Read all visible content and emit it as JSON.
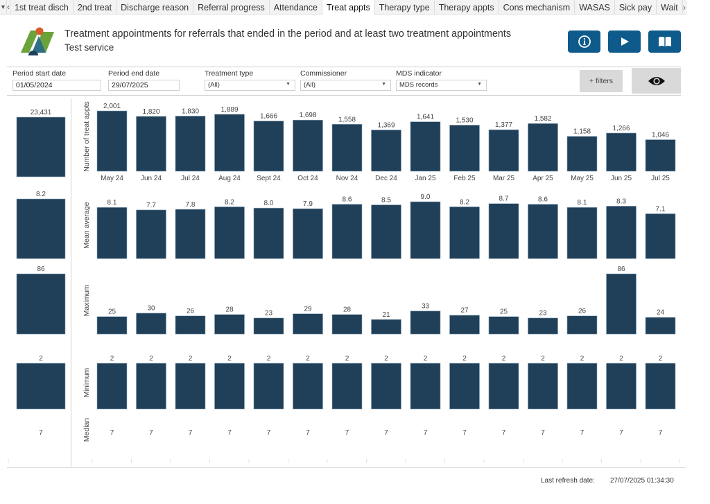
{
  "tabs": {
    "items": [
      {
        "label": "1st treat disch",
        "active": false
      },
      {
        "label": "2nd treat",
        "active": false
      },
      {
        "label": "Discharge reason",
        "active": false
      },
      {
        "label": "Referral progress",
        "active": false
      },
      {
        "label": "Attendance",
        "active": false
      },
      {
        "label": "Treat appts",
        "active": true
      },
      {
        "label": "Therapy type",
        "active": false
      },
      {
        "label": "Therapy appts",
        "active": false
      },
      {
        "label": "Cons mechanism",
        "active": false
      },
      {
        "label": "WASAS",
        "active": false
      },
      {
        "label": "Sick pay",
        "active": false
      },
      {
        "label": "Wait",
        "active": false
      }
    ],
    "menu_icon": "caret-down-icon",
    "prev_icon": "chevron-left-icon",
    "next_icon": "chevron-right-icon"
  },
  "header": {
    "title": "Treatment appointments for referrals that ended in the period and at least two treatment appointments",
    "subtitle": "Test service",
    "buttons": [
      {
        "name": "info-button",
        "icon": "info-icon"
      },
      {
        "name": "play-button",
        "icon": "play-icon"
      },
      {
        "name": "guide-button",
        "icon": "book-icon"
      }
    ],
    "button_color": "#0e5a8a"
  },
  "filters": {
    "period_start": {
      "label": "Period start date",
      "value": "01/05/2024"
    },
    "period_end": {
      "label": "Period end date",
      "value": "29/07/2025"
    },
    "treatment_type": {
      "label": "Treatment type",
      "value": "(All)"
    },
    "commissioner": {
      "label": "Commissioner",
      "value": "(All)"
    },
    "mds_indicator": {
      "label": "MDS indicator",
      "value": "MDS records"
    },
    "more_filters_label": "+ filters",
    "visibility_icon": "eye-icon"
  },
  "footer": {
    "refresh_label": "Last refresh date:",
    "refresh_value": "27/07/2025 01:34:30"
  },
  "colors": {
    "bar": "#203f58",
    "bar_edge": "#8aa4b8",
    "text": "#333333",
    "divider": "#cfcfcf"
  },
  "chart_data": {
    "type": "bar",
    "categories": [
      "May 24",
      "Jun 24",
      "Jul 24",
      "Aug 24",
      "Sept 24",
      "Oct 24",
      "Nov 24",
      "Dec 24",
      "Jan 25",
      "Feb 25",
      "Mar 25",
      "Apr 25",
      "May 25",
      "Jun 25",
      "Jul 25"
    ],
    "series": [
      {
        "name": "Number of treat appts",
        "total": 23431,
        "total_label": "23,431",
        "values": [
          2001,
          1820,
          1830,
          1889,
          1666,
          1698,
          1558,
          1369,
          1641,
          1530,
          1377,
          1582,
          1158,
          1266,
          1046
        ],
        "labels": [
          "2,001",
          "1,820",
          "1,830",
          "1,889",
          "1,666",
          "1,698",
          "1,558",
          "1,369",
          "1,641",
          "1,530",
          "1,377",
          "1,582",
          "1,158",
          "1,266",
          "1,046"
        ],
        "bars": true
      },
      {
        "name": "Mean average",
        "total": 8.2,
        "total_label": "8.2",
        "values": [
          8.1,
          7.7,
          7.8,
          8.2,
          8.0,
          7.9,
          8.6,
          8.5,
          9.0,
          8.2,
          8.7,
          8.6,
          8.1,
          8.3,
          7.1
        ],
        "labels": [
          "8.1",
          "7.7",
          "7.8",
          "8.2",
          "8.0",
          "7.9",
          "8.6",
          "8.5",
          "9.0",
          "8.2",
          "8.7",
          "8.6",
          "8.1",
          "8.3",
          "7.1"
        ],
        "bars": true
      },
      {
        "name": "Maximum",
        "total": 86,
        "total_label": "86",
        "values": [
          25,
          30,
          26,
          28,
          23,
          29,
          28,
          21,
          33,
          27,
          25,
          23,
          26,
          86,
          24
        ],
        "labels": [
          "25",
          "30",
          "26",
          "28",
          "23",
          "29",
          "28",
          "21",
          "33",
          "27",
          "25",
          "23",
          "26",
          "86",
          "24"
        ],
        "bars": true
      },
      {
        "name": "Minimum",
        "total": 2,
        "total_label": "2",
        "values": [
          2,
          2,
          2,
          2,
          2,
          2,
          2,
          2,
          2,
          2,
          2,
          2,
          2,
          2,
          2
        ],
        "labels": [
          "2",
          "2",
          "2",
          "2",
          "2",
          "2",
          "2",
          "2",
          "2",
          "2",
          "2",
          "2",
          "2",
          "2",
          "2"
        ],
        "bars": true
      },
      {
        "name": "Median",
        "total": 7,
        "total_label": "7",
        "values": [
          7,
          7,
          7,
          7,
          7,
          7,
          7,
          7,
          7,
          7,
          7,
          7,
          7,
          7,
          7
        ],
        "labels": [
          "7",
          "7",
          "7",
          "7",
          "7",
          "7",
          "7",
          "7",
          "7",
          "7",
          "7",
          "7",
          "7",
          "7",
          "7"
        ],
        "bars": false
      }
    ],
    "title": "Treatment appointments for referrals that ended in the period and at least two treatment appointments",
    "xlabel": "",
    "grid": false,
    "legend": "none"
  }
}
